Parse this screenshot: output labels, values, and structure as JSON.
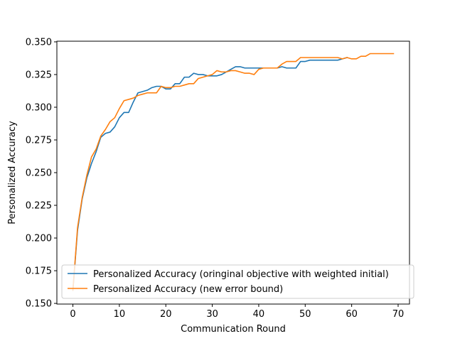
{
  "chart_data": {
    "type": "line",
    "title": "",
    "xlabel": "Communication Round",
    "ylabel": "Personalized Accuracy",
    "xlim": [
      -3.45,
      72.45
    ],
    "ylim": [
      0.1495,
      0.3505
    ],
    "xticks": [
      0,
      10,
      20,
      30,
      40,
      50,
      60,
      70
    ],
    "xtick_labels": [
      "0",
      "10",
      "20",
      "30",
      "40",
      "50",
      "60",
      "70"
    ],
    "yticks": [
      0.15,
      0.175,
      0.2,
      0.225,
      0.25,
      0.275,
      0.3,
      0.325,
      0.35
    ],
    "ytick_labels": [
      "0.150",
      "0.175",
      "0.200",
      "0.225",
      "0.250",
      "0.275",
      "0.300",
      "0.325",
      "0.350"
    ],
    "grid": false,
    "legend_position": "lower-left",
    "series": [
      {
        "name": "Personalized Accuracy (oringinal objective with weighted initial)",
        "color": "#1f77b4",
        "x": [
          0,
          1,
          2,
          3,
          4,
          5,
          6,
          7,
          8,
          9,
          10,
          11,
          12,
          13,
          14,
          15,
          16,
          17,
          18,
          19,
          20,
          21,
          22,
          23,
          24,
          25,
          26,
          27,
          28,
          29,
          30,
          31,
          32,
          33,
          34,
          35,
          36,
          37,
          38,
          39,
          40,
          41,
          42,
          43,
          44,
          45,
          46,
          47,
          48,
          49,
          50,
          51,
          52,
          53,
          54,
          55,
          56,
          57,
          58,
          59
        ],
        "y": [
          0.16,
          0.206,
          0.23,
          0.246,
          0.257,
          0.266,
          0.277,
          0.28,
          0.281,
          0.285,
          0.292,
          0.296,
          0.296,
          0.304,
          0.311,
          0.312,
          0.313,
          0.315,
          0.316,
          0.316,
          0.314,
          0.314,
          0.318,
          0.318,
          0.323,
          0.323,
          0.326,
          0.325,
          0.325,
          0.324,
          0.324,
          0.324,
          0.325,
          0.327,
          0.329,
          0.331,
          0.331,
          0.33,
          0.33,
          0.33,
          0.33,
          0.33,
          0.33,
          0.33,
          0.33,
          0.331,
          0.33,
          0.33,
          0.33,
          0.335,
          0.335,
          0.336,
          0.336,
          0.336,
          0.336,
          0.336,
          0.336,
          0.336,
          0.337,
          0.338
        ]
      },
      {
        "name": "Personalized Accuracy (new error bound)",
        "color": "#ff7f0e",
        "x": [
          0,
          1,
          2,
          3,
          4,
          5,
          6,
          7,
          8,
          9,
          10,
          11,
          12,
          13,
          14,
          15,
          16,
          17,
          18,
          19,
          20,
          21,
          22,
          23,
          24,
          25,
          26,
          27,
          28,
          29,
          30,
          31,
          32,
          33,
          34,
          35,
          36,
          37,
          38,
          39,
          40,
          41,
          42,
          43,
          44,
          45,
          46,
          47,
          48,
          49,
          50,
          51,
          52,
          53,
          54,
          55,
          56,
          57,
          58,
          59,
          60,
          61,
          62,
          63,
          64,
          65,
          66,
          67,
          68,
          69
        ],
        "y": [
          0.16,
          0.208,
          0.231,
          0.248,
          0.262,
          0.268,
          0.278,
          0.283,
          0.289,
          0.292,
          0.299,
          0.305,
          0.306,
          0.307,
          0.309,
          0.31,
          0.311,
          0.311,
          0.311,
          0.316,
          0.315,
          0.315,
          0.316,
          0.316,
          0.317,
          0.318,
          0.318,
          0.322,
          0.323,
          0.324,
          0.325,
          0.328,
          0.327,
          0.327,
          0.328,
          0.328,
          0.327,
          0.326,
          0.326,
          0.325,
          0.329,
          0.33,
          0.33,
          0.33,
          0.33,
          0.333,
          0.335,
          0.335,
          0.335,
          0.338,
          0.338,
          0.338,
          0.338,
          0.338,
          0.338,
          0.338,
          0.338,
          0.338,
          0.337,
          0.338,
          0.337,
          0.337,
          0.339,
          0.339,
          0.341,
          0.341,
          0.341,
          0.341,
          0.341,
          0.341
        ]
      }
    ]
  }
}
